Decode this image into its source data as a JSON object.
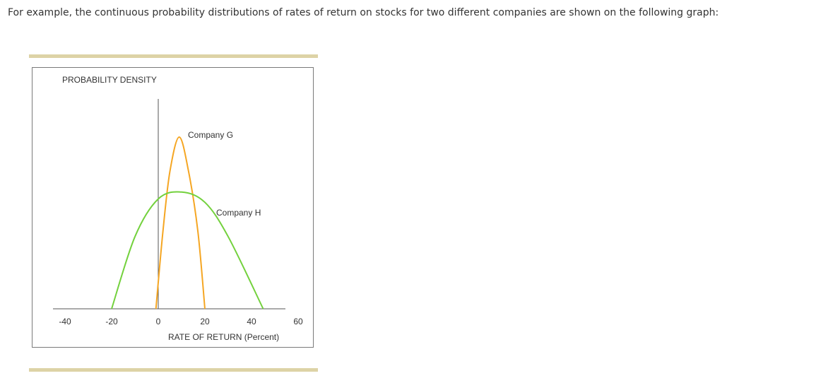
{
  "intro_text": "For example, the continuous probability distributions of rates of return on stocks for two different companies are shown on the following graph:",
  "colors": {
    "rule": "#ddd3a6",
    "axis": "#555555",
    "company_g": "#f5a623",
    "company_h": "#73d13d"
  },
  "chart_data": {
    "type": "line",
    "ylabel": "PROBABILITY DENSITY",
    "xlabel": "RATE OF RETURN (Percent)",
    "xlim": [
      -40,
      60
    ],
    "x_ticks": [
      "-40",
      "-20",
      "0",
      "20",
      "40",
      "60"
    ],
    "series": [
      {
        "name": "Company G",
        "x": [
          -1,
          2,
          5,
          9,
          13,
          17,
          20
        ],
        "y": [
          0,
          0.45,
          0.8,
          1.0,
          0.8,
          0.45,
          0
        ]
      },
      {
        "name": "Company H",
        "x": [
          -20,
          -10,
          0,
          10,
          20,
          30,
          45
        ],
        "y": [
          0,
          0.42,
          0.64,
          0.68,
          0.62,
          0.42,
          0
        ]
      }
    ]
  }
}
